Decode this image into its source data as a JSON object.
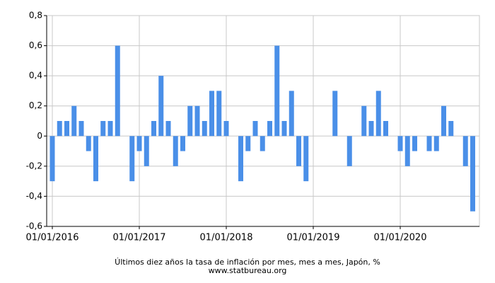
{
  "chart_data": {
    "type": "bar",
    "title": "Últimos diez años la tasa de inflación por mes, mes a mes, Japón, %",
    "source": "www.statbureau.org",
    "color": "#4a8fe8",
    "grid": true,
    "categories": [
      "01/01/2016",
      null,
      null,
      null,
      null,
      null,
      null,
      null,
      null,
      null,
      null,
      null,
      "01/01/2017",
      null,
      null,
      null,
      null,
      null,
      null,
      null,
      null,
      null,
      null,
      null,
      "01/01/2018",
      null,
      null,
      null,
      null,
      null,
      null,
      null,
      null,
      null,
      null,
      null,
      "01/01/2019",
      null,
      null,
      null,
      null,
      null,
      null,
      null,
      null,
      null,
      null,
      null,
      "01/01/2020",
      null,
      null,
      null,
      null,
      null,
      null,
      null,
      null,
      null,
      null
    ],
    "values": [
      -0.3,
      0.1,
      0.1,
      0.2,
      0.1,
      -0.1,
      -0.3,
      0.1,
      0.1,
      0.6,
      0,
      -0.3,
      -0.1,
      -0.2,
      0.1,
      0.4,
      0.1,
      -0.2,
      -0.1,
      0.2,
      0.2,
      0.1,
      0.3,
      0.3,
      0.1,
      0,
      -0.3,
      -0.1,
      0.1,
      -0.1,
      0.1,
      0.6,
      0.1,
      0.3,
      -0.2,
      -0.3,
      0,
      0,
      0,
      0.3,
      0,
      -0.2,
      0,
      0.2,
      0.1,
      0.3,
      0.1,
      0,
      -0.1,
      -0.2,
      -0.1,
      0,
      -0.1,
      -0.1,
      0.2,
      0.1,
      0,
      -0.2,
      -0.5
    ],
    "ylim": [
      -0.6,
      0.8
    ],
    "yticks": [
      {
        "value": -0.6,
        "label": "-0,6"
      },
      {
        "value": -0.4,
        "label": "-0,4"
      },
      {
        "value": -0.2,
        "label": "-0,2"
      },
      0,
      {
        "value": 0.2,
        "label": "0,2"
      },
      {
        "value": 0.4,
        "label": "0,4"
      },
      {
        "value": 0.6,
        "label": "0,6"
      },
      {
        "value": 0.8,
        "label": "0,8"
      }
    ]
  }
}
